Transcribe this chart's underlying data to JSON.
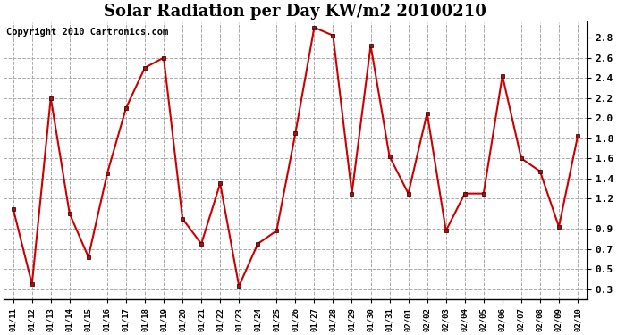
{
  "title": "Solar Radiation per Day KW/m2 20100210",
  "copyright_text": "Copyright 2010 Cartronics.com",
  "dates": [
    "01/11",
    "01/12",
    "01/13",
    "01/14",
    "01/15",
    "01/16",
    "01/17",
    "01/18",
    "01/19",
    "01/20",
    "01/21",
    "01/22",
    "01/23",
    "01/24",
    "01/25",
    "01/26",
    "01/27",
    "01/28",
    "01/29",
    "01/30",
    "01/31",
    "02/01",
    "02/02",
    "02/03",
    "02/04",
    "02/05",
    "02/06",
    "02/07",
    "02/08",
    "02/09",
    "02/10"
  ],
  "values": [
    1.1,
    0.35,
    2.2,
    1.05,
    0.62,
    1.45,
    2.1,
    2.5,
    2.6,
    1.0,
    0.75,
    1.35,
    0.33,
    0.75,
    0.88,
    1.85,
    2.9,
    2.82,
    1.25,
    2.72,
    1.62,
    1.25,
    2.05,
    0.88,
    1.25,
    1.25,
    2.42,
    1.6,
    1.47,
    0.92,
    1.82
  ],
  "line_color": "#cc0000",
  "marker": "s",
  "marker_size": 3,
  "ylim": [
    0.2,
    2.95
  ],
  "yticks": [
    0.3,
    0.5,
    0.7,
    0.9,
    1.2,
    1.4,
    1.6,
    1.8,
    2.0,
    2.2,
    2.4,
    2.6,
    2.8
  ],
  "grid_color": "#aaaaaa",
  "background_color": "#ffffff",
  "title_fontsize": 13,
  "copyright_fontsize": 7.5
}
